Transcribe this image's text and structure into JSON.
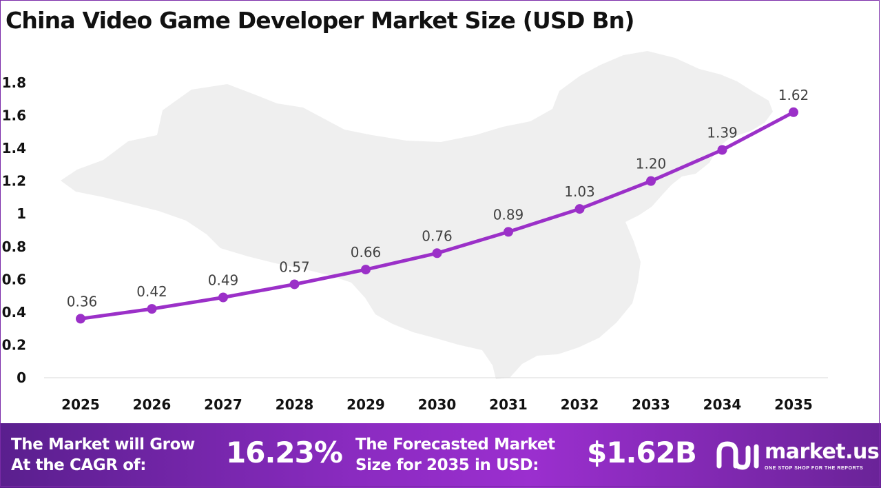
{
  "chart_data": {
    "type": "line",
    "title": "China Video Game Developer Market Size (USD Bn)",
    "categories": [
      "2025",
      "2026",
      "2027",
      "2028",
      "2029",
      "2030",
      "2031",
      "2032",
      "2033",
      "2034",
      "2035"
    ],
    "series": [
      {
        "values": [
          0.36,
          0.42,
          0.49,
          0.57,
          0.66,
          0.76,
          0.89,
          1.03,
          1.2,
          1.39,
          1.62
        ],
        "data_labels": [
          "0.36",
          "0.42",
          "0.49",
          "0.57",
          "0.66",
          "0.76",
          "0.89",
          "1.03",
          "1.20",
          "1.39",
          "1.62"
        ]
      }
    ],
    "y_ticks": [
      "0",
      "0.2",
      "0.4",
      "0.6",
      "0.8",
      "1",
      "1.2",
      "1.4",
      "1.6",
      "1.8"
    ],
    "ylim": [
      0,
      1.8
    ],
    "grid": false,
    "legend": "none",
    "line_color": "#9b30c8",
    "background": "map-of-china"
  },
  "footer": {
    "cagr_label_line1": "The Market will Grow",
    "cagr_label_line2": "At the CAGR of:",
    "cagr_value": "16.23%",
    "forecast_label_line1": "The Forecasted Market",
    "forecast_label_line2": "Size for 2035 in USD:",
    "forecast_value": "$1.62B",
    "brand_name": "market.us",
    "brand_tagline": "ONE STOP SHOP FOR THE REPORTS",
    "brand_icon": "market-us-logo-icon"
  },
  "colors": {
    "footer_start": "#5a1f8e",
    "footer_end": "#9b2fcf",
    "map_fill": "#efefef"
  }
}
